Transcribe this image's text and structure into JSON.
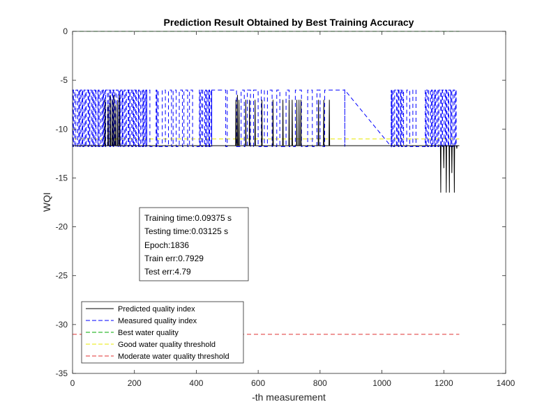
{
  "chart_data": {
    "type": "line",
    "title": "Prediction Result Obtained by Best Training Accuracy",
    "xlabel": "-th measurement",
    "ylabel": "WQI",
    "xlim": [
      0,
      1400
    ],
    "ylim": [
      -35,
      0
    ],
    "x_ticks": [
      "0",
      "200",
      "400",
      "600",
      "800",
      "1000",
      "1200",
      "1400"
    ],
    "y_ticks": [
      "0",
      "-5",
      "-10",
      "-15",
      "-20",
      "-25",
      "-30",
      "-35"
    ],
    "grid": false,
    "series": [
      {
        "name": "Predicted quality index",
        "color": "#000000",
        "style": "solid",
        "baseline": -11.7,
        "spikes": [
          {
            "x": 105,
            "y": -7.0
          },
          {
            "x": 115,
            "y": -7.5
          },
          {
            "x": 122,
            "y": -6.5
          },
          {
            "x": 128,
            "y": -7.0
          },
          {
            "x": 134,
            "y": -6.5
          },
          {
            "x": 140,
            "y": -7.5
          },
          {
            "x": 146,
            "y": -7.0
          },
          {
            "x": 152,
            "y": -6.5
          },
          {
            "x": 528,
            "y": -7.0
          },
          {
            "x": 533,
            "y": -6.5
          },
          {
            "x": 538,
            "y": -7.0
          },
          {
            "x": 560,
            "y": -7.0
          },
          {
            "x": 572,
            "y": -7.0
          },
          {
            "x": 590,
            "y": -7.0
          },
          {
            "x": 612,
            "y": -7.0
          },
          {
            "x": 648,
            "y": -7.0
          },
          {
            "x": 680,
            "y": -7.0
          },
          {
            "x": 700,
            "y": -7.0
          },
          {
            "x": 710,
            "y": -7.0
          },
          {
            "x": 725,
            "y": -7.0
          },
          {
            "x": 732,
            "y": -7.0
          },
          {
            "x": 738,
            "y": -7.0
          },
          {
            "x": 795,
            "y": -7.0
          },
          {
            "x": 812,
            "y": -7.0
          },
          {
            "x": 830,
            "y": -7.0
          },
          {
            "x": 1190,
            "y": -16.5
          },
          {
            "x": 1200,
            "y": -14.0
          },
          {
            "x": 1208,
            "y": -16.5
          },
          {
            "x": 1218,
            "y": -16.5
          },
          {
            "x": 1226,
            "y": -14.5
          },
          {
            "x": 1234,
            "y": -16.5
          },
          {
            "x": 1242,
            "y": -12.0
          }
        ]
      },
      {
        "name": "Measured quality index",
        "color": "#0000ff",
        "style": "dashed",
        "low": -11.8,
        "high": -6.0,
        "dense_blocks": [
          [
            0,
            240
          ],
          [
            270,
            280
          ],
          [
            410,
            450
          ],
          [
            1030,
            1070
          ],
          [
            1140,
            1240
          ]
        ],
        "pulses": [
          [
            240,
            250
          ],
          [
            290,
            300
          ],
          [
            310,
            320
          ],
          [
            325,
            335
          ],
          [
            345,
            355
          ],
          [
            360,
            372
          ],
          [
            378,
            388
          ],
          [
            500,
            530
          ],
          [
            545,
            555
          ],
          [
            565,
            575
          ],
          [
            585,
            600
          ],
          [
            610,
            620
          ],
          [
            630,
            645
          ],
          [
            660,
            670
          ],
          [
            690,
            700
          ],
          [
            720,
            740
          ],
          [
            760,
            775
          ],
          [
            790,
            800
          ],
          [
            815,
            880
          ],
          [
            1080,
            1090
          ],
          [
            1100,
            1110
          ]
        ],
        "plateaus": [
          [
            450,
            495
          ],
          [
            880,
            1030
          ]
        ]
      },
      {
        "name": "Best water quality",
        "color": "#00aa00",
        "style": "dashed",
        "x": [
          0,
          1250
        ],
        "y": [
          0,
          0
        ]
      },
      {
        "name": "Good water quality threshold",
        "color": "#e8e800",
        "style": "dashed",
        "x": [
          0,
          1250
        ],
        "y": [
          -11,
          -11
        ]
      },
      {
        "name": "Moderate water quality threshold",
        "color": "#e03030",
        "style": "dashed",
        "x": [
          0,
          1250
        ],
        "y": [
          -31,
          -31
        ]
      }
    ],
    "legend_position": "bottom-left",
    "annotations": [
      "Training time:0.09375 s",
      "Testing time:0.03125 s",
      "Epoch:1836",
      "Train err:0.7929",
      "Test err:4.79"
    ]
  }
}
